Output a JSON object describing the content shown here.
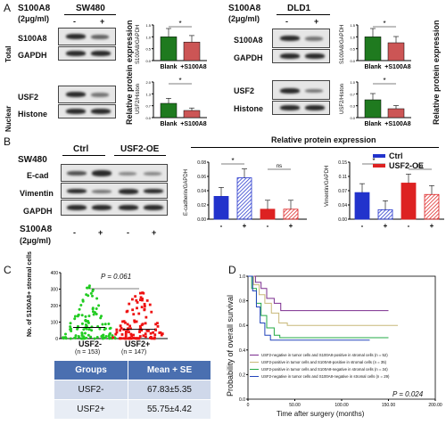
{
  "panelA": {
    "letter": "A",
    "treat_label": "S100A8",
    "treat_dose": "(2μg/ml)",
    "cell_left": "SW480",
    "cell_right": "DLD1",
    "minus": "-",
    "plus": "+",
    "total": "Total",
    "nuclear": "Nuclear",
    "s100a8": "S100A8",
    "gapdh": "GAPDH",
    "usf2": "USF2",
    "histone": "Histone",
    "ylab_rel": "Relative protein expression",
    "ylab_top": "S100A8/GAPDH",
    "ylab_bot": "USF2/Histon",
    "blank": "Blank",
    "plus_s100a8": "+S100A8",
    "star": "*"
  },
  "panelB": {
    "letter": "B",
    "cell": "SW480",
    "ctrl": "Ctrl",
    "oe": "USF2-OE",
    "ecad": "E-cad",
    "vim": "Vimentin",
    "gapdh": "GAPDH",
    "s100a8": "S100A8",
    "dose": "(2μg/ml)",
    "rel_title": "Relative protein expression",
    "ylab1": "E-cadherin/GAPDH",
    "ylab2": "Vimentin/GAPDH",
    "legend_ctrl": "Ctrl",
    "legend_oe": "USF2-OE",
    "ns": "ns",
    "star": "*",
    "minus": "-",
    "plus": "+"
  },
  "panelC": {
    "letter": "C",
    "ylabel": "No. of S100A8+ stromal cells",
    "pval": "P = 0.061",
    "g1": "USF2-",
    "g1n": "(n = 153)",
    "g2": "USF2+",
    "g2n": "(n = 147)",
    "table_head": [
      "Groups",
      "Mean + SE"
    ],
    "table_rows": [
      [
        "USF2-",
        "67.83±5.35"
      ],
      [
        "USF2+",
        "55.75±4.42"
      ]
    ]
  },
  "panelD": {
    "letter": "D",
    "ylabel": "Probability of overall survival",
    "xlabel": "Time after surgery (months)",
    "pval": "P = 0.024",
    "legend": [
      "USF2-negative in tumor cells and S100A8-positive in stromal cells (n = 52)",
      "USF2-positive in tumor cells and S100A8-positive in stromal cells (n = 35)",
      "USF2-positive in tumor cells and S100A8-negative in stromal cells (n = 34)",
      "USF2-negative in tumor cells and S100A8-negative in stromal cells (n = 29)"
    ],
    "legend_colors": [
      "#7b2d8e",
      "#c8b878",
      "#22aa44",
      "#2244bb"
    ],
    "xticks": [
      "0",
      "50.00",
      "100.00",
      "150.00",
      "200.00"
    ],
    "yticks": [
      "1.0",
      "0.8",
      "0.6",
      "0.4",
      "0.2",
      "0.0"
    ]
  },
  "chart_data": [
    {
      "type": "bar",
      "panel": "A-SW480-top",
      "categories": [
        "Blank",
        "+S100A8"
      ],
      "values": [
        1.0,
        0.78
      ],
      "ylim": [
        0,
        1.5
      ],
      "ylabel": "S100A8/GAPDH",
      "colors": [
        "#1f7a1f",
        "#cc5555"
      ]
    },
    {
      "type": "bar",
      "panel": "A-SW480-bottom",
      "categories": [
        "Blank",
        "+S100A8"
      ],
      "values": [
        0.8,
        0.4
      ],
      "ylim": [
        0,
        2.0
      ],
      "ylabel": "USF2/Histon",
      "colors": [
        "#1f7a1f",
        "#cc5555"
      ]
    },
    {
      "type": "bar",
      "panel": "A-DLD1-top",
      "categories": [
        "Blank",
        "+S100A8"
      ],
      "values": [
        1.0,
        0.75
      ],
      "ylim": [
        0,
        1.5
      ],
      "ylabel": "S100A8/GAPDH",
      "colors": [
        "#1f7a1f",
        "#cc5555"
      ]
    },
    {
      "type": "bar",
      "panel": "A-DLD1-bottom",
      "categories": [
        "Blank",
        "+S100A8"
      ],
      "values": [
        0.5,
        0.25
      ],
      "ylim": [
        0,
        1.0
      ],
      "ylabel": "USF2/Histon",
      "colors": [
        "#1f7a1f",
        "#cc5555"
      ]
    },
    {
      "type": "bar",
      "panel": "B-Ecad",
      "categories": [
        "Ctrl -",
        "Ctrl +",
        "USF2-OE -",
        "USF2-OE +"
      ],
      "values": [
        0.032,
        0.058,
        0.014,
        0.014
      ],
      "ylim": [
        0,
        0.08
      ],
      "ylabel": "E-cadherin/GAPDH"
    },
    {
      "type": "bar",
      "panel": "B-Vim",
      "categories": [
        "Ctrl -",
        "Ctrl +",
        "USF2-OE -",
        "USF2-OE +"
      ],
      "values": [
        0.07,
        0.025,
        0.095,
        0.065
      ],
      "ylim": [
        0,
        0.15
      ],
      "ylabel": "Vimentin/GAPDH"
    },
    {
      "type": "scatter",
      "panel": "C",
      "categories": [
        "USF2-",
        "USF2+"
      ],
      "means": [
        67.83,
        55.75
      ],
      "se": [
        5.35,
        4.42
      ],
      "n": [
        153,
        147
      ],
      "ylim": [
        0,
        400
      ]
    }
  ]
}
